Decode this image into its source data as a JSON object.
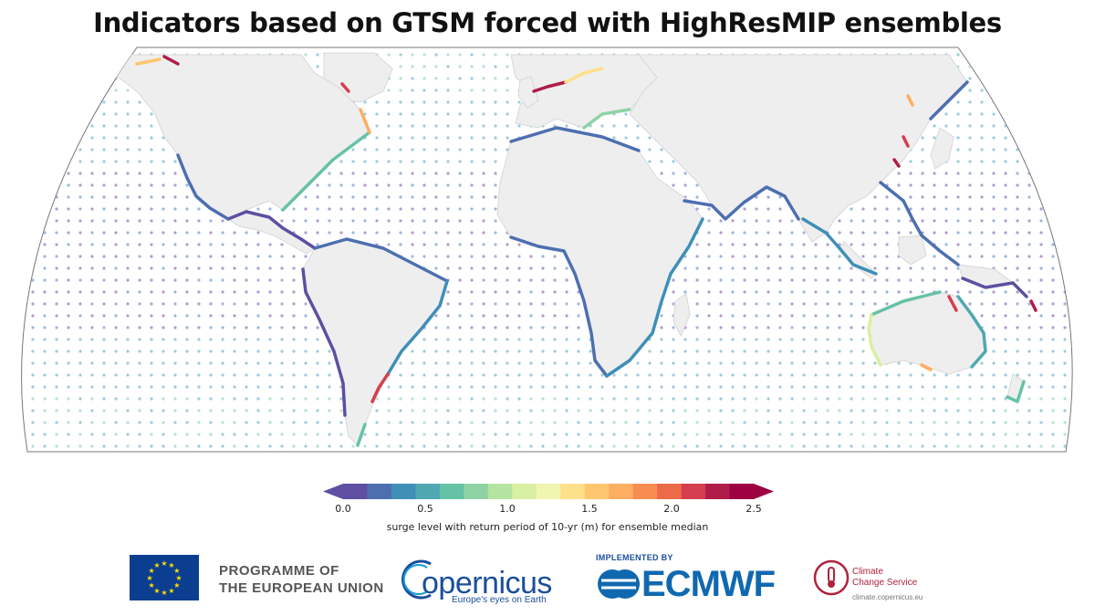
{
  "title": "Indicators based on GTSM forced with HighResMIP ensembles",
  "colorbar": {
    "label": "surge level with return period of 10-yr (m) for ensemble median",
    "ticks": [
      "0.0",
      "0.5",
      "1.0",
      "1.5",
      "2.0",
      "2.5"
    ],
    "tick_values": [
      0.0,
      0.5,
      1.0,
      1.5,
      2.0,
      2.5
    ],
    "range": [
      0.0,
      2.5
    ],
    "extend": "both",
    "colors": [
      "#5e4fa2",
      "#4d6fb0",
      "#3f8fb7",
      "#4fa8b0",
      "#66c2a5",
      "#8fd3a4",
      "#b5e3a0",
      "#d9f0a3",
      "#f0f5b0",
      "#fee08b",
      "#fdc66f",
      "#fdae61",
      "#f88d52",
      "#ec6a48",
      "#d53e4f",
      "#b01c4a",
      "#9e0142"
    ]
  },
  "logos": {
    "eu_line1": "PROGRAMME OF",
    "eu_line2": "THE EUROPEAN UNION",
    "copernicus": "opernicus",
    "copernicus_tagline": "Europe's eyes on Earth",
    "implemented_by": "IMPLEMENTED BY",
    "ecmwf": "ECMWF",
    "c3s_line1": "Climate",
    "c3s_line2": "Change Service",
    "c3s_url": "climate.copernicus.eu"
  }
}
